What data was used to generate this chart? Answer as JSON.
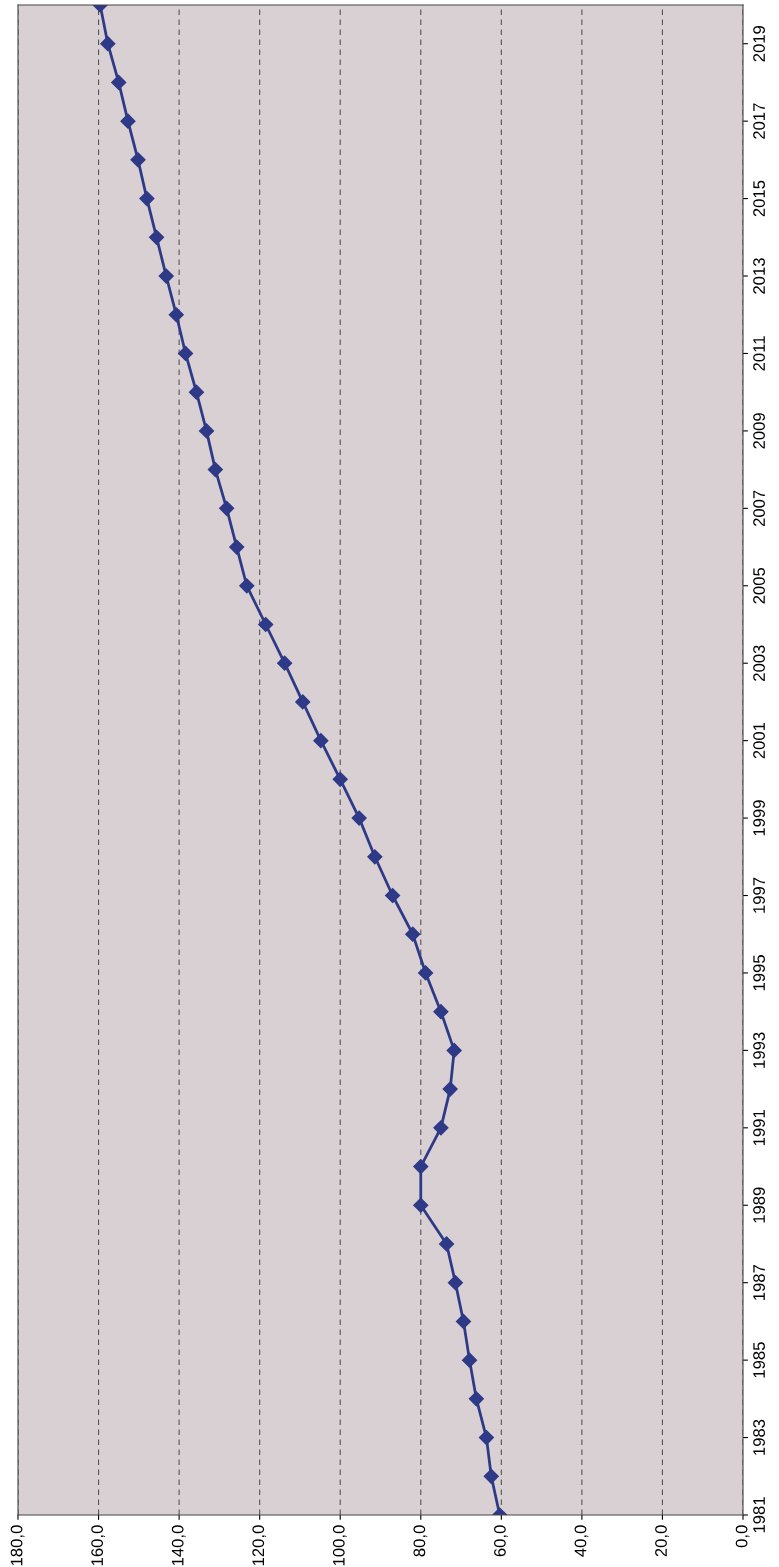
{
  "chart_data": {
    "type": "line",
    "x": [
      60.4,
      62.5,
      63.7,
      66.2,
      67.9,
      69.4,
      71.4,
      73.6,
      80,
      80,
      75,
      72.7,
      71.7,
      75,
      78.8,
      82,
      87,
      91.4,
      95.3,
      100,
      104.8,
      109.3,
      113.8,
      118.5,
      123.2,
      125.7,
      128.2,
      131,
      133.2,
      135.7,
      138.4,
      140.7,
      143.2,
      145.6,
      148,
      150.2,
      152.7,
      155,
      157.7,
      159.6
    ],
    "series": [
      {
        "color": "#2e3a87",
        "values": [
          1981,
          1982,
          1983,
          1984,
          1985,
          1986,
          1987,
          1988,
          1989,
          1990,
          1991,
          1992,
          1993,
          1994,
          1995,
          1996,
          1997,
          1998,
          1999,
          2000,
          2001,
          2002,
          2003,
          2004,
          2005,
          2006,
          2007,
          2008,
          2009,
          2010,
          2011,
          2012,
          2013,
          2014,
          2015,
          2016,
          2017,
          2018,
          2019,
          2020
        ]
      }
    ],
    "xlim": [
      180,
      0
    ],
    "xticks": [
      {
        "value": 180,
        "label": "180,0"
      },
      {
        "value": 160,
        "label": "160,0"
      },
      {
        "value": 140,
        "label": "140,0"
      },
      {
        "value": 120,
        "label": "120,0"
      },
      {
        "value": 100,
        "label": "100,0"
      },
      {
        "value": 80,
        "label": "80,0"
      },
      {
        "value": 60,
        "label": "60,0"
      },
      {
        "value": 40,
        "label": "40,0"
      },
      {
        "value": 20,
        "label": "20,0"
      },
      {
        "value": 0,
        "label": "0,0"
      }
    ],
    "ylim": [
      1981,
      2020
    ],
    "yticks": [
      1981,
      1983,
      1985,
      1987,
      1989,
      1991,
      1993,
      1995,
      1997,
      1999,
      2001,
      2003,
      2005,
      2007,
      2009,
      2011,
      2013,
      2015,
      2017,
      2019
    ],
    "grid": "x",
    "marker": "diamond",
    "line_style": "solid"
  }
}
